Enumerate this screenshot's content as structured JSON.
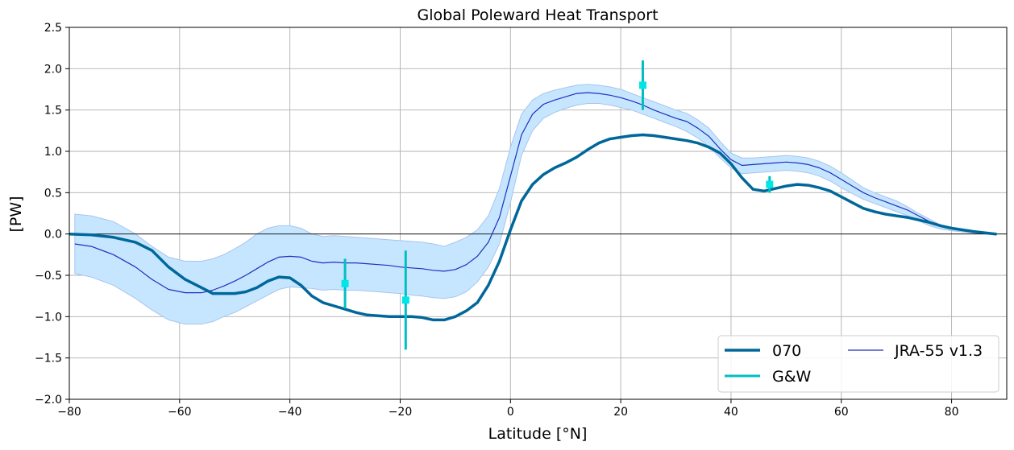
{
  "chart_data": {
    "type": "line",
    "title": "Global Poleward Heat Transport",
    "xlabel": "Latitude [°N]",
    "ylabel": "[PW]",
    "xlim": [
      -80,
      90
    ],
    "ylim": [
      -2.0,
      2.5
    ],
    "xticks": [
      -80,
      -60,
      -40,
      -20,
      0,
      20,
      40,
      60,
      80
    ],
    "xtick_labels": [
      "−80",
      "−60",
      "−40",
      "−20",
      "0",
      "20",
      "40",
      "60",
      "80"
    ],
    "yticks": [
      -2.0,
      -1.5,
      -1.0,
      -0.5,
      0.0,
      0.5,
      1.0,
      1.5,
      2.0,
      2.5
    ],
    "ytick_labels": [
      "−2.0",
      "−1.5",
      "−1.0",
      "−0.5",
      "0.0",
      "0.5",
      "1.0",
      "1.5",
      "2.0",
      "2.5"
    ],
    "grid": true,
    "legend_position": "bottom-right",
    "zero_line": true,
    "colors": {
      "model": "#00679a",
      "obs": "#00bfc4",
      "obs_marker": "#00e5e5",
      "reanalysis": "#1f2fbf",
      "band_fill": "#c6e6ff",
      "band_edge": "#a9c4ec"
    },
    "series": [
      {
        "name": "070",
        "style": "thick",
        "x": [
          -80,
          -76,
          -72,
          -68,
          -65,
          -62,
          -59,
          -56,
          -54,
          -52,
          -50,
          -48,
          -46,
          -44,
          -42,
          -40,
          -38,
          -36,
          -34,
          -32,
          -30,
          -28,
          -26,
          -24,
          -22,
          -20,
          -18,
          -16,
          -14,
          -12,
          -10,
          -8,
          -6,
          -4,
          -2,
          0,
          2,
          4,
          6,
          8,
          10,
          12,
          14,
          16,
          18,
          20,
          22,
          24,
          26,
          28,
          30,
          32,
          34,
          36,
          38,
          40,
          42,
          44,
          46,
          48,
          50,
          52,
          54,
          56,
          58,
          60,
          62,
          64,
          66,
          68,
          70,
          72,
          74,
          76,
          78,
          80,
          84,
          88
        ],
        "y": [
          0.0,
          -0.01,
          -0.04,
          -0.1,
          -0.2,
          -0.4,
          -0.55,
          -0.65,
          -0.72,
          -0.72,
          -0.72,
          -0.7,
          -0.65,
          -0.57,
          -0.52,
          -0.53,
          -0.62,
          -0.75,
          -0.83,
          -0.87,
          -0.91,
          -0.95,
          -0.98,
          -0.99,
          -1.0,
          -1.0,
          -1.0,
          -1.01,
          -1.04,
          -1.04,
          -1.0,
          -0.93,
          -0.83,
          -0.62,
          -0.33,
          0.05,
          0.4,
          0.6,
          0.72,
          0.8,
          0.86,
          0.93,
          1.02,
          1.1,
          1.15,
          1.17,
          1.19,
          1.2,
          1.19,
          1.17,
          1.15,
          1.13,
          1.1,
          1.05,
          0.98,
          0.85,
          0.68,
          0.54,
          0.52,
          0.55,
          0.58,
          0.6,
          0.59,
          0.56,
          0.52,
          0.45,
          0.38,
          0.31,
          0.27,
          0.24,
          0.22,
          0.2,
          0.17,
          0.14,
          0.1,
          0.07,
          0.03,
          0.0
        ]
      },
      {
        "name": "G&W",
        "style": "errorbar",
        "points": [
          {
            "x": -30,
            "y": -0.6,
            "low": -0.9,
            "high": -0.3
          },
          {
            "x": -19,
            "y": -0.8,
            "low": -1.4,
            "high": -0.2
          },
          {
            "x": 24,
            "y": 1.8,
            "low": 1.5,
            "high": 2.1
          },
          {
            "x": 47,
            "y": 0.6,
            "low": 0.5,
            "high": 0.7
          }
        ]
      },
      {
        "name": "JRA-55 v1.3",
        "style": "thin",
        "x": [
          -79,
          -76,
          -72,
          -68,
          -65,
          -62,
          -59,
          -56,
          -54,
          -52,
          -50,
          -48,
          -46,
          -44,
          -42,
          -40,
          -38,
          -36,
          -34,
          -32,
          -30,
          -28,
          -26,
          -24,
          -22,
          -20,
          -18,
          -16,
          -14,
          -12,
          -10,
          -8,
          -6,
          -4,
          -2,
          0,
          2,
          4,
          6,
          8,
          10,
          12,
          14,
          16,
          18,
          20,
          22,
          24,
          26,
          28,
          30,
          32,
          34,
          36,
          38,
          40,
          42,
          44,
          46,
          48,
          50,
          52,
          54,
          56,
          58,
          60,
          62,
          64,
          66,
          68,
          70,
          72,
          74,
          76,
          78,
          80,
          84,
          88
        ],
        "y": [
          -0.12,
          -0.15,
          -0.25,
          -0.4,
          -0.55,
          -0.67,
          -0.71,
          -0.71,
          -0.68,
          -0.63,
          -0.57,
          -0.5,
          -0.42,
          -0.34,
          -0.28,
          -0.27,
          -0.28,
          -0.33,
          -0.35,
          -0.34,
          -0.35,
          -0.35,
          -0.36,
          -0.37,
          -0.38,
          -0.4,
          -0.41,
          -0.42,
          -0.44,
          -0.45,
          -0.43,
          -0.37,
          -0.27,
          -0.1,
          0.2,
          0.7,
          1.2,
          1.45,
          1.57,
          1.62,
          1.66,
          1.7,
          1.71,
          1.7,
          1.68,
          1.65,
          1.61,
          1.56,
          1.5,
          1.45,
          1.4,
          1.36,
          1.28,
          1.18,
          1.03,
          0.9,
          0.83,
          0.84,
          0.85,
          0.86,
          0.87,
          0.86,
          0.84,
          0.8,
          0.74,
          0.66,
          0.58,
          0.5,
          0.44,
          0.39,
          0.34,
          0.29,
          0.22,
          0.15,
          0.09,
          0.06,
          0.02,
          0.0
        ]
      }
    ],
    "reanalysis_spread": {
      "x": [
        -79,
        -76,
        -72,
        -68,
        -65,
        -62,
        -59,
        -56,
        -54,
        -52,
        -50,
        -48,
        -46,
        -44,
        -42,
        -40,
        -38,
        -36,
        -34,
        -32,
        -30,
        -28,
        -26,
        -24,
        -22,
        -20,
        -18,
        -16,
        -14,
        -12,
        -10,
        -8,
        -6,
        -4,
        -2,
        0,
        2,
        4,
        6,
        8,
        10,
        12,
        14,
        16,
        18,
        20,
        22,
        24,
        26,
        28,
        30,
        32,
        34,
        36,
        38,
        40,
        42,
        44,
        46,
        48,
        50,
        52,
        54,
        56,
        58,
        60,
        62,
        64,
        66,
        68,
        70,
        72,
        74,
        76,
        78,
        80,
        84,
        88
      ],
      "upper": [
        0.24,
        0.22,
        0.15,
        0.0,
        -0.15,
        -0.28,
        -0.33,
        -0.33,
        -0.3,
        -0.25,
        -0.18,
        -0.1,
        0.0,
        0.07,
        0.1,
        0.1,
        0.07,
        0.0,
        -0.03,
        -0.02,
        -0.03,
        -0.04,
        -0.05,
        -0.06,
        -0.07,
        -0.08,
        -0.09,
        -0.1,
        -0.12,
        -0.15,
        -0.1,
        -0.04,
        0.05,
        0.22,
        0.55,
        1.05,
        1.45,
        1.62,
        1.7,
        1.74,
        1.77,
        1.8,
        1.81,
        1.8,
        1.78,
        1.75,
        1.7,
        1.65,
        1.6,
        1.55,
        1.5,
        1.46,
        1.38,
        1.28,
        1.12,
        0.98,
        0.92,
        0.92,
        0.93,
        0.94,
        0.95,
        0.94,
        0.92,
        0.88,
        0.82,
        0.74,
        0.65,
        0.56,
        0.5,
        0.45,
        0.4,
        0.33,
        0.25,
        0.18,
        0.11,
        0.07,
        0.03,
        0.0
      ],
      "lower": [
        -0.48,
        -0.52,
        -0.62,
        -0.78,
        -0.92,
        -1.04,
        -1.09,
        -1.09,
        -1.06,
        -1.0,
        -0.95,
        -0.88,
        -0.81,
        -0.74,
        -0.67,
        -0.64,
        -0.65,
        -0.66,
        -0.68,
        -0.67,
        -0.68,
        -0.68,
        -0.69,
        -0.7,
        -0.71,
        -0.72,
        -0.74,
        -0.75,
        -0.77,
        -0.78,
        -0.76,
        -0.7,
        -0.58,
        -0.4,
        -0.12,
        0.38,
        0.95,
        1.25,
        1.4,
        1.47,
        1.52,
        1.56,
        1.58,
        1.58,
        1.56,
        1.53,
        1.5,
        1.45,
        1.4,
        1.35,
        1.3,
        1.24,
        1.16,
        1.06,
        0.92,
        0.8,
        0.73,
        0.74,
        0.75,
        0.76,
        0.77,
        0.76,
        0.74,
        0.7,
        0.64,
        0.56,
        0.49,
        0.42,
        0.37,
        0.32,
        0.27,
        0.22,
        0.16,
        0.1,
        0.06,
        0.04,
        0.01,
        -0.01
      ]
    }
  }
}
